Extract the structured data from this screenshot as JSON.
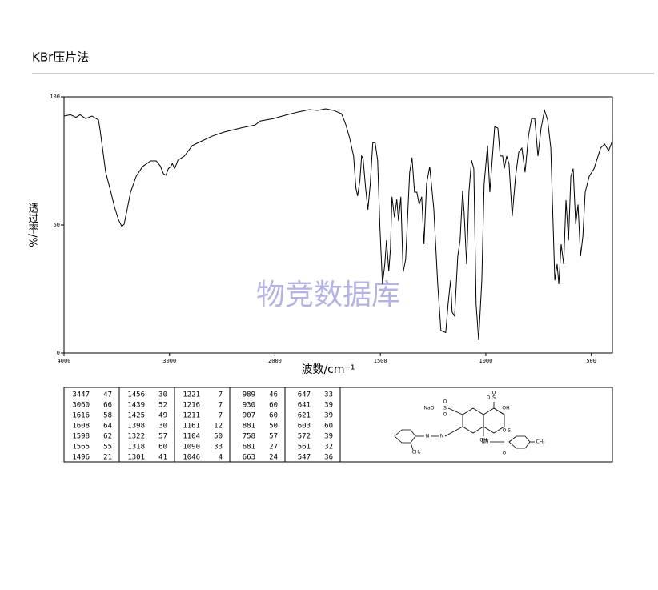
{
  "header": {
    "title": "KBr压片法"
  },
  "chart_data": {
    "type": "line",
    "xlabel": "波数/cm⁻¹",
    "ylabel": "透过率/%",
    "watermark": "物竞数据库",
    "xlim": [
      4000,
      400
    ],
    "xticks": [
      4000,
      3000,
      2000,
      1500,
      1000,
      500
    ],
    "ylim": [
      0,
      100
    ],
    "yticks": [
      0,
      50,
      100
    ],
    "color": "#000000",
    "x": [
      4000,
      3939,
      3886,
      3848,
      3795,
      3734,
      3696,
      3673,
      3658,
      3635,
      3605,
      3559,
      3521,
      3483,
      3452,
      3430,
      3407,
      3369,
      3316,
      3255,
      3179,
      3125,
      3087,
      3057,
      3034,
      3011,
      2989,
      2973,
      2951,
      2920,
      2859,
      2783,
      2707,
      2593,
      2479,
      2327,
      2190,
      2137,
      2015,
      1951,
      1894,
      1837,
      1798,
      1760,
      1722,
      1684,
      1665,
      1646,
      1627,
      1616,
      1608,
      1597,
      1589,
      1582,
      1570,
      1559,
      1548,
      1536,
      1525,
      1513,
      1502,
      1490,
      1479,
      1471,
      1460,
      1452,
      1445,
      1433,
      1422,
      1414,
      1403,
      1392,
      1380,
      1361,
      1350,
      1338,
      1327,
      1316,
      1304,
      1293,
      1281,
      1266,
      1247,
      1228,
      1213,
      1190,
      1179,
      1167,
      1160,
      1148,
      1133,
      1122,
      1110,
      1103,
      1091,
      1080,
      1068,
      1057,
      1046,
      1034,
      1019,
      1008,
      992,
      981,
      973,
      958,
      943,
      932,
      920,
      913,
      901,
      890,
      875,
      859,
      844,
      829,
      814,
      798,
      783,
      768,
      753,
      738,
      722,
      707,
      692,
      681,
      673,
      662,
      654,
      643,
      631,
      620,
      608,
      597,
      586,
      574,
      563,
      551,
      540,
      529,
      510,
      487,
      456,
      437,
      418,
      403,
      400
    ],
    "values": [
      92.5,
      93,
      92,
      93,
      91.5,
      92.5,
      91.5,
      91,
      87,
      80,
      70.6,
      63.4,
      57,
      52,
      49.4,
      50.3,
      55,
      62.8,
      69,
      72.8,
      75,
      75,
      73,
      70,
      69.4,
      72,
      72.8,
      74,
      72,
      75.3,
      76.9,
      81,
      82.5,
      84.7,
      86.3,
      87.8,
      89,
      90.6,
      91.5,
      92.8,
      94,
      95,
      94.7,
      95.3,
      94.7,
      93.4,
      89.4,
      84,
      76.9,
      64.4,
      61.3,
      67.5,
      76.9,
      76,
      64.4,
      56,
      66,
      82,
      82.2,
      75.3,
      48.8,
      26.9,
      34.7,
      44,
      32,
      41,
      61,
      53,
      60,
      51.6,
      61,
      31.6,
      36.6,
      70.6,
      76.3,
      62.8,
      62.8,
      58,
      61,
      42.5,
      66,
      72.8,
      56.6,
      26.9,
      8.75,
      8,
      19,
      28.4,
      16,
      14.4,
      37.8,
      44,
      63.4,
      55,
      34.7,
      62.8,
      75.3,
      72,
      19,
      5,
      28.4,
      66,
      81,
      62.8,
      72,
      88.4,
      87.8,
      76.9,
      76.9,
      72,
      76.9,
      73.8,
      53.4,
      69,
      78.4,
      80,
      70.6,
      84.7,
      91.5,
      91.5,
      76.9,
      87.8,
      94.7,
      91,
      80,
      50.3,
      28.4,
      34.7,
      26.9,
      42.5,
      34.7,
      59.7,
      44,
      69,
      72,
      50.3,
      58,
      37.8,
      45.6,
      62.8,
      69,
      72,
      80,
      81.6,
      79,
      82.2,
      83
    ]
  },
  "peak_table": [
    [
      [
        3447,
        47
      ],
      [
        3060,
        66
      ],
      [
        1616,
        58
      ],
      [
        1608,
        64
      ],
      [
        1598,
        62
      ],
      [
        1565,
        55
      ],
      [
        1496,
        21
      ]
    ],
    [
      [
        1456,
        30
      ],
      [
        1439,
        52
      ],
      [
        1425,
        49
      ],
      [
        1398,
        30
      ],
      [
        1322,
        57
      ],
      [
        1318,
        60
      ],
      [
        1301,
        41
      ]
    ],
    [
      [
        1221,
        7
      ],
      [
        1216,
        7
      ],
      [
        1211,
        7
      ],
      [
        1161,
        12
      ],
      [
        1104,
        50
      ],
      [
        1090,
        33
      ],
      [
        1046,
        4
      ]
    ],
    [
      [
        989,
        46
      ],
      [
        930,
        60
      ],
      [
        907,
        60
      ],
      [
        881,
        50
      ],
      [
        758,
        57
      ],
      [
        681,
        27
      ],
      [
        663,
        24
      ]
    ],
    [
      [
        647,
        33
      ],
      [
        641,
        39
      ],
      [
        621,
        39
      ],
      [
        603,
        60
      ],
      [
        572,
        39
      ],
      [
        561,
        32
      ],
      [
        547,
        36
      ]
    ]
  ],
  "structure": {
    "labels": [
      "NaO",
      "S",
      "O",
      "O",
      "S",
      "OH",
      "O",
      "O",
      "N",
      "N",
      "OH",
      "NH",
      "S",
      "O",
      "O",
      "CH₃",
      "CH₃"
    ]
  }
}
